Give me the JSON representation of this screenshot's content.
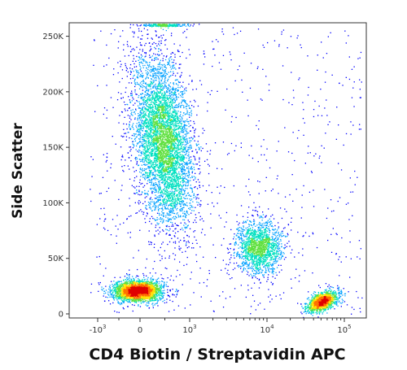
{
  "chart_data": {
    "type": "scatter",
    "title": "",
    "xlabel": "CD4 Biotin / Streptavidin APC",
    "ylabel": "Side Scatter",
    "x_scale": "biexponential",
    "xlim": [
      -1800,
      120000
    ],
    "ylim": [
      0,
      262144
    ],
    "y_ticks": [
      {
        "value": 0,
        "label": "0"
      },
      {
        "value": 50000,
        "label": "50K"
      },
      {
        "value": 100000,
        "label": "100K"
      },
      {
        "value": 150000,
        "label": "150K"
      },
      {
        "value": 200000,
        "label": "200K"
      },
      {
        "value": 250000,
        "label": "250K"
      }
    ],
    "x_ticks": [
      {
        "value": -1000,
        "base": "-10",
        "exp": "3"
      },
      {
        "value": 0,
        "base": "0",
        "exp": ""
      },
      {
        "value": 1000,
        "base": "10",
        "exp": "3"
      },
      {
        "value": 10000,
        "base": "10",
        "exp": "4"
      },
      {
        "value": 100000,
        "base": "10",
        "exp": "5"
      }
    ],
    "grid": false,
    "colormap": [
      "#0000ff",
      "#00a0ff",
      "#00e0c0",
      "#60e040",
      "#ffe000",
      "#ff7000",
      "#e00000"
    ],
    "populations": [
      {
        "center_x": 550,
        "center_y": 150000,
        "sd_y": 40000,
        "density": "high"
      },
      {
        "center_x": 0,
        "center_y": 21000,
        "sd_y": 6000,
        "density": "very high"
      },
      {
        "center_x": 10000,
        "center_y": 65000,
        "sd_y": 15000,
        "density": "medium"
      },
      {
        "center_x": 60000,
        "center_y": 13000,
        "sd_y": 4000,
        "density": "very high"
      }
    ]
  }
}
